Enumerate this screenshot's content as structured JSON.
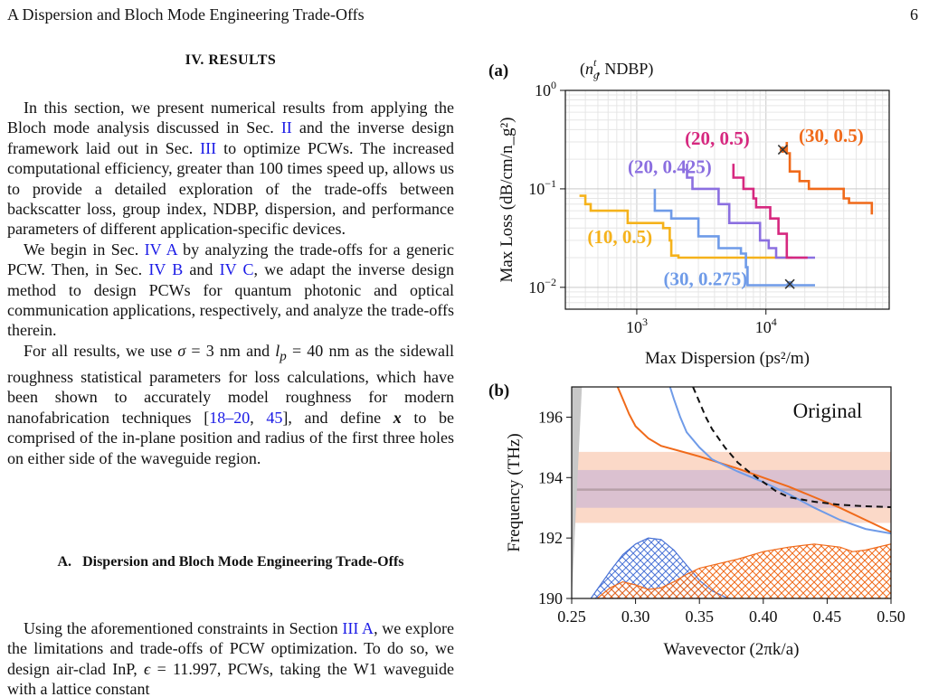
{
  "header": {
    "running_head": "A   Dispersion and Bloch Mode Engineering Trade-Offs",
    "page_number": "6"
  },
  "section": {
    "title": "IV.   RESULTS"
  },
  "paragraphs": {
    "p1": {
      "t1": "In this section, we present numerical results from applying the Bloch mode analysis discussed in Sec. ",
      "l1": "II",
      "t2": " and the inverse design framework laid out in Sec. ",
      "l2": "III",
      "t3": " to optimize PCWs.  The increased computational efficiency, greater than 100 times speed up, allows us to provide a detailed exploration of the trade-offs between backscatter loss, group index, NDBP, dispersion, and performance parameters of different application-specific devices."
    },
    "p2": {
      "t1": "We begin in Sec. ",
      "l1": "IV A",
      "t2": " by analyzing the trade-offs for a generic PCW. Then, in Sec. ",
      "l2": "IV B",
      "t3": " and ",
      "l3": "IV C",
      "t4": ", we adapt the inverse design method to design PCWs for quantum photonic and optical communication applications, respectively, and analyze the trade-offs therein."
    },
    "p3": {
      "t1": "For all results, we use ",
      "m1": "σ",
      "t2": " = 3 nm and ",
      "m2": "l",
      "m2sub": "p",
      "t3": " = 40 nm as the sidewall roughness statistical parameters for loss calculations, which have been shown to accurately model roughness for modern nanofabrication techniques [",
      "l1": "18–20",
      "t4": ", ",
      "l2": "45",
      "t5": "], and define ",
      "m3": "x",
      "t6": " to be comprised of the in-plane position and radius of the first three holes on either side of the waveguide region."
    },
    "p4": {
      "t1": "Using the aforementioned constraints in Section ",
      "l1": "III A",
      "t2": ", we explore the limitations and trade-offs of PCW optimization. To do so, we design air-clad InP, ",
      "m1": "ϵ",
      "t3": " = 11.997, PCWs, taking the W1 waveguide with a lattice constant"
    }
  },
  "subsection": {
    "letter": "A.",
    "title": "Dispersion and Bloch Mode Engineering Trade-Offs"
  },
  "chart_data": [
    {
      "panel": "(a)",
      "type": "line",
      "legend_title": "(n_g^t, NDBP)",
      "xlabel": "Max Dispersion (ps²/m)",
      "ylabel": "Max Loss (dB/cm/n_g²)",
      "xscale": "log",
      "yscale": "log",
      "xlim": [
        280,
        90000
      ],
      "ylim": [
        0.006,
        1.0
      ],
      "xticks": [
        {
          "v": 1000,
          "base": "10",
          "exp": "3"
        },
        {
          "v": 10000,
          "base": "10",
          "exp": "4"
        }
      ],
      "yticks": [
        {
          "v": 1,
          "base": "10",
          "exp": "0"
        },
        {
          "v": 0.1,
          "base": "10",
          "exp": "−1"
        },
        {
          "v": 0.01,
          "base": "10",
          "exp": "−2"
        }
      ],
      "grid": true,
      "series": [
        {
          "name": "(10, 0.5)",
          "color": "#f5b21b",
          "label_at": [
            740,
            0.028
          ],
          "points": [
            [
              360,
              0.085
            ],
            [
              400,
              0.085
            ],
            [
              400,
              0.07
            ],
            [
              440,
              0.07
            ],
            [
              440,
              0.06
            ],
            [
              850,
              0.06
            ],
            [
              850,
              0.045
            ],
            [
              1600,
              0.045
            ],
            [
              1600,
              0.04
            ],
            [
              1800,
              0.04
            ],
            [
              1800,
              0.03
            ],
            [
              1850,
              0.03
            ],
            [
              1850,
              0.021
            ],
            [
              2100,
              0.021
            ],
            [
              2100,
              0.02
            ],
            [
              16000,
              0.02
            ]
          ]
        },
        {
          "name": "(30, 0.275)",
          "color": "#6f9be8",
          "label_at": [
            3400,
            0.0105
          ],
          "points": [
            [
              1380,
              0.1
            ],
            [
              1380,
              0.06
            ],
            [
              1850,
              0.06
            ],
            [
              1850,
              0.05
            ],
            [
              3000,
              0.05
            ],
            [
              3000,
              0.033
            ],
            [
              4300,
              0.033
            ],
            [
              4300,
              0.025
            ],
            [
              6400,
              0.025
            ],
            [
              6400,
              0.022
            ],
            [
              7000,
              0.022
            ],
            [
              7000,
              0.016
            ],
            [
              7200,
              0.016
            ],
            [
              7200,
              0.0105
            ],
            [
              24000,
              0.0105
            ]
          ]
        },
        {
          "name": "(20, 0.425)",
          "color": "#8b6fe0",
          "label_at": [
            1800,
            0.145
          ],
          "points": [
            [
              2450,
              0.18
            ],
            [
              2450,
              0.13
            ],
            [
              2700,
              0.13
            ],
            [
              2700,
              0.1
            ],
            [
              4300,
              0.1
            ],
            [
              4300,
              0.07
            ],
            [
              5200,
              0.07
            ],
            [
              5200,
              0.045
            ],
            [
              9000,
              0.045
            ],
            [
              9000,
              0.03
            ],
            [
              10500,
              0.03
            ],
            [
              10500,
              0.025
            ],
            [
              12000,
              0.025
            ],
            [
              12000,
              0.02
            ],
            [
              24000,
              0.02
            ]
          ]
        },
        {
          "name": "(20, 0.5)",
          "color": "#d6287f",
          "label_at": [
            4200,
            0.28
          ],
          "points": [
            [
              5600,
              0.18
            ],
            [
              5600,
              0.13
            ],
            [
              6700,
              0.13
            ],
            [
              6700,
              0.1
            ],
            [
              8000,
              0.1
            ],
            [
              8000,
              0.08
            ],
            [
              8400,
              0.08
            ],
            [
              8400,
              0.065
            ],
            [
              10800,
              0.065
            ],
            [
              10800,
              0.05
            ],
            [
              12500,
              0.05
            ],
            [
              12500,
              0.035
            ],
            [
              14500,
              0.035
            ],
            [
              14500,
              0.02
            ],
            [
              21000,
              0.02
            ]
          ]
        },
        {
          "name": "(30, 0.5)",
          "color": "#f06a1a",
          "label_at": [
            32000,
            0.3
          ],
          "points": [
            [
              14500,
              0.3
            ],
            [
              14500,
              0.23
            ],
            [
              15300,
              0.23
            ],
            [
              15300,
              0.15
            ],
            [
              18200,
              0.15
            ],
            [
              18200,
              0.12
            ],
            [
              21500,
              0.12
            ],
            [
              21500,
              0.1
            ],
            [
              40000,
              0.1
            ],
            [
              40000,
              0.08
            ],
            [
              44000,
              0.08
            ],
            [
              44000,
              0.072
            ],
            [
              66000,
              0.072
            ],
            [
              66000,
              0.055
            ]
          ]
        }
      ],
      "markers": [
        {
          "x": 13500,
          "y": 0.25,
          "color": "#f06a1a"
        },
        {
          "x": 15300,
          "y": 0.0108,
          "color": "#6f9be8"
        }
      ]
    },
    {
      "panel": "(b)",
      "type": "line",
      "annotation": "Original",
      "xlabel": "Wavevector (2πk/a)",
      "ylabel": "Frequency (THz)",
      "xlim": [
        0.25,
        0.5
      ],
      "ylim": [
        190,
        197
      ],
      "xticks": [
        0.25,
        0.3,
        0.35,
        0.4,
        0.45,
        0.5
      ],
      "xtick_labels": [
        "0.25",
        "0.30",
        "0.35",
        "0.40",
        "0.45",
        "0.50"
      ],
      "yticks": [
        190,
        192,
        194,
        196
      ],
      "bands": [
        {
          "from": 192.5,
          "to": 194.85,
          "color": "#f7b99a",
          "opacity": 0.55
        },
        {
          "from": 193.0,
          "to": 194.25,
          "color": "#c6b0d6",
          "opacity": 0.6
        }
      ],
      "center_line": {
        "y": 193.6,
        "color": "#b7a0a8"
      },
      "light_cone": [
        [
          0.25,
          190
        ],
        [
          0.258,
          197
        ],
        [
          0.25,
          197
        ]
      ],
      "series": [
        {
          "name": "orange",
          "color": "#f06a1a",
          "dash": false,
          "points": [
            [
              0.286,
              197
            ],
            [
              0.29,
              196.6
            ],
            [
              0.295,
              196.1
            ],
            [
              0.3,
              195.7
            ],
            [
              0.31,
              195.3
            ],
            [
              0.32,
              195.05
            ],
            [
              0.35,
              194.7
            ],
            [
              0.38,
              194.3
            ],
            [
              0.4,
              194.0
            ],
            [
              0.42,
              193.7
            ],
            [
              0.44,
              193.35
            ],
            [
              0.46,
              193.0
            ],
            [
              0.48,
              192.6
            ],
            [
              0.5,
              192.2
            ]
          ]
        },
        {
          "name": "blue",
          "color": "#6f9be8",
          "dash": false,
          "points": [
            [
              0.327,
              197
            ],
            [
              0.33,
              196.6
            ],
            [
              0.335,
              196.0
            ],
            [
              0.34,
              195.5
            ],
            [
              0.35,
              195.0
            ],
            [
              0.36,
              194.6
            ],
            [
              0.38,
              194.2
            ],
            [
              0.4,
              193.85
            ],
            [
              0.42,
              193.45
            ],
            [
              0.44,
              193.0
            ],
            [
              0.46,
              192.6
            ],
            [
              0.48,
              192.3
            ],
            [
              0.5,
              192.15
            ]
          ]
        },
        {
          "name": "dashed",
          "color": "#111111",
          "dash": true,
          "points": [
            [
              0.345,
              197
            ],
            [
              0.35,
              196.5
            ],
            [
              0.355,
              196.0
            ],
            [
              0.36,
              195.6
            ],
            [
              0.37,
              195.0
            ],
            [
              0.38,
              194.5
            ],
            [
              0.39,
              194.15
            ],
            [
              0.4,
              193.85
            ],
            [
              0.41,
              193.55
            ],
            [
              0.42,
              193.35
            ],
            [
              0.44,
              193.2
            ],
            [
              0.46,
              193.1
            ],
            [
              0.48,
              193.05
            ],
            [
              0.5,
              193.02
            ]
          ]
        }
      ],
      "hatched": [
        {
          "name": "blue-region",
          "color": "#4a73d6",
          "points": [
            [
              0.265,
              190
            ],
            [
              0.27,
              190.3
            ],
            [
              0.28,
              190.9
            ],
            [
              0.29,
              191.45
            ],
            [
              0.3,
              191.8
            ],
            [
              0.31,
              192.0
            ],
            [
              0.32,
              191.95
            ],
            [
              0.33,
              191.6
            ],
            [
              0.34,
              191.1
            ],
            [
              0.35,
              190.6
            ],
            [
              0.36,
              190.25
            ],
            [
              0.37,
              190.05
            ],
            [
              0.375,
              190
            ]
          ]
        },
        {
          "name": "orange-region",
          "color": "#f06a1a",
          "points": [
            [
              0.27,
              190
            ],
            [
              0.28,
              190.35
            ],
            [
              0.29,
              190.55
            ],
            [
              0.3,
              190.45
            ],
            [
              0.31,
              190.3
            ],
            [
              0.32,
              190.35
            ],
            [
              0.33,
              190.55
            ],
            [
              0.34,
              190.8
            ],
            [
              0.35,
              191.0
            ],
            [
              0.36,
              191.1
            ],
            [
              0.38,
              191.3
            ],
            [
              0.4,
              191.55
            ],
            [
              0.42,
              191.7
            ],
            [
              0.44,
              191.8
            ],
            [
              0.46,
              191.7
            ],
            [
              0.47,
              191.55
            ],
            [
              0.48,
              191.6
            ],
            [
              0.5,
              191.8
            ],
            [
              0.5,
              190
            ]
          ]
        }
      ]
    }
  ]
}
